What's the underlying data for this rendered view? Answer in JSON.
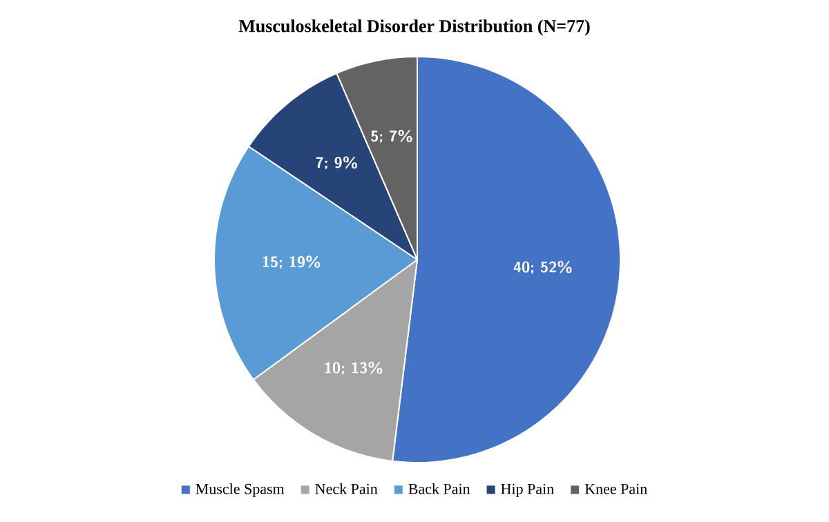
{
  "chart_data": {
    "type": "pie",
    "title": "Musculoskeletal Disorder Distribution (N=77)",
    "categories": [
      "Muscle Spasm",
      "Neck Pain",
      "Back Pain",
      "Hip Pain",
      "Knee Pain"
    ],
    "values": [
      40,
      10,
      15,
      7,
      5
    ],
    "value_labels": [
      "40; 52%",
      "10; 13%",
      "15; 19%",
      "7; 9%",
      "5; 7%"
    ],
    "colors": [
      "#4472c4",
      "#a5a5a5",
      "#5b9bd5",
      "#264478",
      "#636363"
    ],
    "legend": "bottom"
  }
}
